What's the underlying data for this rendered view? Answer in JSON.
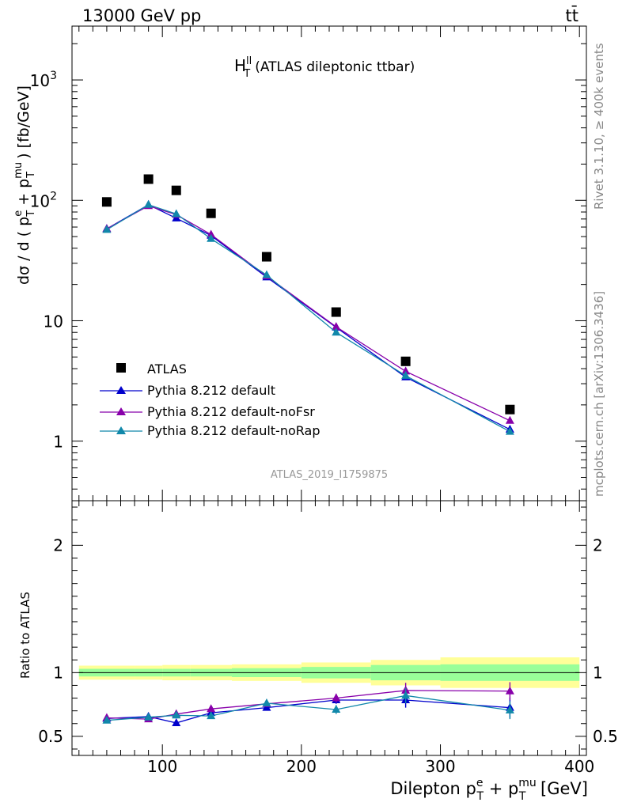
{
  "header": {
    "left": "13000 GeV pp",
    "right": "tt̄"
  },
  "side_text": {
    "rivet": "Rivet 3.1.10, ≥ 400k events",
    "mcplots": "mcplots.cern.ch [arXiv:1306.3436]"
  },
  "chart_data": [
    {
      "id": "main",
      "type": "line",
      "title_main": "H",
      "title_sup": "ll",
      "title_sub": "T",
      "title_rest": "(ATLAS dileptonic ttbar)",
      "analysis_label": "ATLAS_2019_I1759875",
      "ylabel": "dσ / d ( p",
      "ylabel_sup_e": "e",
      "ylabel_sub_T": "T",
      "ylabel_plus": " + p",
      "ylabel_sup_mu": "mu",
      "ylabel_end": " ) [fb/GeV]",
      "yscale": "log",
      "ylim": [
        0.32,
        2800
      ],
      "xlim": [
        35,
        405
      ],
      "y_tick_labels": [
        "1",
        "10",
        "10",
        "10"
      ],
      "y_tick_exps": [
        "",
        "",
        "2",
        "3"
      ],
      "series": [
        {
          "name": "ATLAS",
          "color": "#000000",
          "marker": "square",
          "x": [
            60,
            90,
            110,
            135,
            175,
            225,
            275,
            350
          ],
          "values": [
            97,
            150,
            121,
            78,
            34,
            11.8,
            4.6,
            1.83
          ]
        },
        {
          "name": "Pythia 8.212 default",
          "color": "#0000cc",
          "marker": "triangle",
          "x": [
            60,
            90,
            110,
            135,
            175,
            225,
            275,
            350
          ],
          "values": [
            58,
            92,
            71,
            51,
            23,
            8.8,
            3.4,
            1.25
          ]
        },
        {
          "name": "Pythia 8.212 default-noFsr",
          "color": "#8800aa",
          "marker": "triangle",
          "x": [
            60,
            90,
            110,
            135,
            175,
            225,
            275,
            350
          ],
          "values": [
            58,
            90,
            76,
            52,
            23.5,
            8.9,
            3.8,
            1.48
          ]
        },
        {
          "name": "Pythia 8.212 default-noRap",
          "color": "#1188aa",
          "marker": "triangle",
          "x": [
            60,
            90,
            110,
            135,
            175,
            225,
            275,
            350
          ],
          "values": [
            57,
            92,
            77,
            48,
            24,
            8.0,
            3.5,
            1.2
          ]
        }
      ]
    },
    {
      "id": "ratio",
      "type": "line",
      "ylabel": "Ratio to ATLAS",
      "xlabel": "Dilepton p",
      "xlabel_sup_e": "e",
      "xlabel_sub_T": "T",
      "xlabel_plus": " + p",
      "xlabel_sup_mu": "mu",
      "xlabel_end": " [GeV]",
      "ylim": [
        0.35,
        2.35
      ],
      "xlim": [
        35,
        405
      ],
      "x_tick_labels": [
        "100",
        "200",
        "300",
        "400"
      ],
      "y_tick_labels": [
        "0.5",
        "1",
        "2"
      ],
      "bin_edges": [
        40,
        80,
        100,
        120,
        150,
        200,
        250,
        300,
        400
      ],
      "band_yellow": [
        0.055,
        0.055,
        0.06,
        0.06,
        0.065,
        0.08,
        0.1,
        0.12
      ],
      "band_green": [
        0.03,
        0.03,
        0.03,
        0.03,
        0.035,
        0.045,
        0.06,
        0.065
      ],
      "series": [
        {
          "name": "Pythia 8.212 default",
          "color": "#0000cc",
          "x": [
            60,
            90,
            110,
            135,
            175,
            225,
            275,
            350
          ],
          "values": [
            0.64,
            0.655,
            0.605,
            0.685,
            0.725,
            0.785,
            0.785,
            0.725
          ],
          "errors": [
            0.01,
            0.015,
            0.015,
            0.015,
            0.02,
            0.03,
            0.06,
            0.08
          ]
        },
        {
          "name": "Pythia 8.212 default-noFsr",
          "color": "#8800aa",
          "x": [
            60,
            90,
            110,
            135,
            175,
            225,
            275,
            350
          ],
          "values": [
            0.645,
            0.635,
            0.675,
            0.715,
            0.755,
            0.8,
            0.86,
            0.855
          ],
          "errors": [
            0.01,
            0.015,
            0.02,
            0.02,
            0.025,
            0.035,
            0.06,
            0.07
          ]
        },
        {
          "name": "Pythia 8.212 default-noRap",
          "color": "#1188aa",
          "x": [
            60,
            90,
            110,
            135,
            175,
            225,
            275,
            350
          ],
          "values": [
            0.625,
            0.65,
            0.665,
            0.66,
            0.76,
            0.71,
            0.82,
            0.705
          ],
          "errors": [
            0.01,
            0.015,
            0.02,
            0.02,
            0.025,
            0.035,
            0.06,
            0.07
          ]
        }
      ]
    }
  ]
}
